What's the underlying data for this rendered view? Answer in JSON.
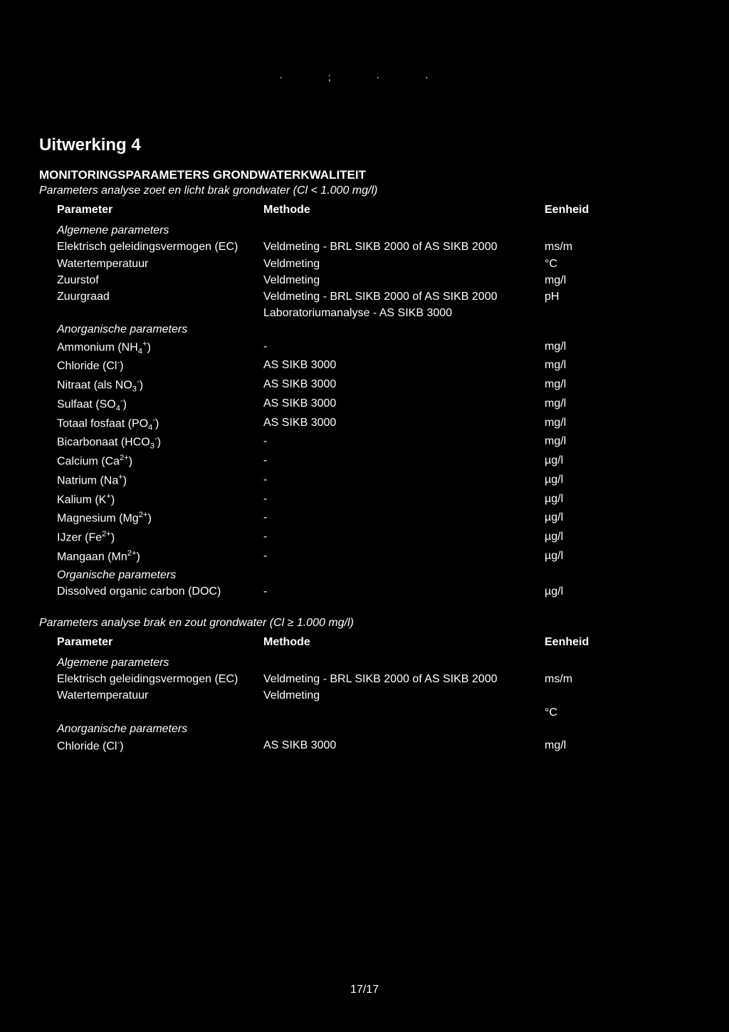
{
  "decor": "·  ;        ·  ·",
  "title": "Uitwerking 4",
  "subtitle": "MONITORINGSPARAMETERS GRONDWATERKWALITEIT",
  "section1_desc": "Parameters analyse zoet en licht brak grondwater (Cl < 1.000 mg/l)",
  "header": {
    "c1": "Parameter",
    "c2": "Methode",
    "c3": "Eenheid"
  },
  "s1_group1": "Algemene parameters",
  "s1_r1": {
    "c1": "Elektrisch geleidingsvermogen (EC)",
    "c2": "Veldmeting - BRL SIKB 2000 of AS SIKB 2000",
    "c3": "ms/m"
  },
  "s1_r2": {
    "c1": "Watertemperatuur",
    "c2": "Veldmeting",
    "c3": "°C"
  },
  "s1_r3": {
    "c1": "Zuurstof",
    "c2": "Veldmeting",
    "c3": "mg/l"
  },
  "s1_r4": {
    "c1": "Zuurgraad",
    "c2": "Veldmeting - BRL SIKB 2000 of AS SIKB 2000",
    "c3": "pH"
  },
  "s1_r5": {
    "c1": " ",
    "c2": "Laboratoriumanalyse - AS SIKB 3000",
    "c3": ""
  },
  "s1_group2": "Anorganische parameters",
  "s1_r6": {
    "p": "Ammonium (NH",
    "sub": "4",
    "sup": "+",
    "post": ")",
    "c2": "-",
    "c3": "mg/l"
  },
  "s1_r7": {
    "p": "Chloride (Cl",
    "sub": "",
    "sup": "-",
    "post": ")",
    "c2": "AS SIKB 3000",
    "c3": "mg/l"
  },
  "s1_r8": {
    "p": "Nitraat (als NO",
    "sub": "3",
    "sup": "-",
    "post": ")",
    "c2": "AS SIKB 3000",
    "c3": "mg/l"
  },
  "s1_r9": {
    "p": "Sulfaat (SO",
    "sub": "4",
    "sup": "-",
    "post": ")",
    "c2": "AS SIKB 3000",
    "c3": "mg/l"
  },
  "s1_r10": {
    "p": "Totaal fosfaat (PO",
    "sub": "4",
    "sup": "-",
    "post": ")",
    "c2": "AS SIKB 3000",
    "c3": "mg/l"
  },
  "s1_r11": {
    "p": "Bicarbonaat (HCO",
    "sub": "3",
    "sup": "-",
    "post": ")",
    "c2": "-",
    "c3": "mg/l"
  },
  "s1_r12": {
    "p": "Calcium (Ca",
    "sub": "",
    "sup": "2+",
    "post": ")",
    "c2": "-",
    "c3": "µg/l"
  },
  "s1_r13": {
    "p": "Natrium (Na",
    "sub": "",
    "sup": "+",
    "post": ")",
    "c2": "-",
    "c3": "µg/l"
  },
  "s1_r14": {
    "p": "Kalium (K",
    "sub": "",
    "sup": "+",
    "post": ")",
    "c2": "-",
    "c3": "µg/l"
  },
  "s1_r15": {
    "p": "Magnesium (Mg",
    "sub": "",
    "sup": "2+",
    "post": ")",
    "c2": "-",
    "c3": "µg/l"
  },
  "s1_r16": {
    "p": "IJzer (Fe",
    "sub": "",
    "sup": "2+",
    "post": ")",
    "c2": "-",
    "c3": "µg/l"
  },
  "s1_r17": {
    "p": "Mangaan (Mn",
    "sub": "",
    "sup": "2+",
    "post": ")",
    "c2": "-",
    "c3": "µg/l"
  },
  "s1_group3": "Organische parameters",
  "s1_r18": {
    "c1": "Dissolved organic carbon (DOC)",
    "c2": "-",
    "c3": "µg/l"
  },
  "section2_desc": "Parameters analyse brak en zout grondwater (Cl ≥ 1.000 mg/l)",
  "s2_group1": "Algemene parameters",
  "s2_r1": {
    "c1": "Elektrisch geleidingsvermogen (EC)",
    "c2": "Veldmeting - BRL SIKB 2000 of AS SIKB 2000",
    "c3": "ms/m"
  },
  "s2_r2": {
    "c1": "Watertemperatuur",
    "c2": "Veldmeting",
    "c3": ""
  },
  "s2_r3": {
    "c1": "",
    "c2": "",
    "c3": "°C"
  },
  "s2_group2": "Anorganische parameters",
  "s2_r4": {
    "p": "Chloride (Cl",
    "sub": "",
    "sup": "-",
    "post": ")",
    "c2": "AS SIKB 3000",
    "c3": "mg/l"
  },
  "page_num": "17/17"
}
